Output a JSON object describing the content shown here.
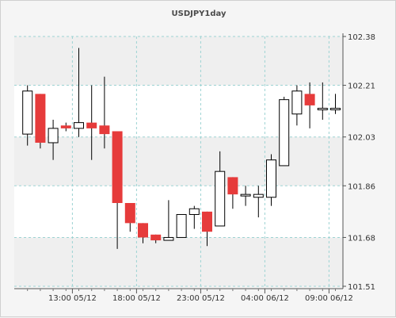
{
  "chart_data": {
    "type": "candlestick",
    "title": "USDJPY1day",
    "y_ticks": [
      "101.51",
      "101.68",
      "101.86",
      "102.03",
      "102.21",
      "102.38"
    ],
    "ylim": [
      101.51,
      102.38
    ],
    "x_tick_labels": [
      {
        "label": "13:00 05/12",
        "index": 3.5
      },
      {
        "label": "18:00 05/12",
        "index": 8.5
      },
      {
        "label": "23:00 05/12",
        "index": 13.5
      },
      {
        "label": "04:00 06/12",
        "index": 18.5
      },
      {
        "label": "09:00 06/12",
        "index": 23.5
      }
    ],
    "grid": true,
    "colors": {
      "up": "#ffffff",
      "down": "#e63b3b",
      "outline": "#000000",
      "grid": "#9dd3d3",
      "band": "#efefef"
    },
    "candles": [
      {
        "open": 102.04,
        "high": 102.21,
        "low": 102.0,
        "close": 102.19
      },
      {
        "open": 102.18,
        "high": 102.18,
        "low": 101.99,
        "close": 102.01
      },
      {
        "open": 102.01,
        "high": 102.09,
        "low": 101.95,
        "close": 102.06
      },
      {
        "open": 102.07,
        "high": 102.08,
        "low": 102.05,
        "close": 102.06
      },
      {
        "open": 102.06,
        "high": 102.34,
        "low": 102.03,
        "close": 102.08
      },
      {
        "open": 102.08,
        "high": 102.21,
        "low": 101.95,
        "close": 102.06
      },
      {
        "open": 102.07,
        "high": 102.24,
        "low": 101.99,
        "close": 102.04
      },
      {
        "open": 102.05,
        "high": 102.05,
        "low": 101.64,
        "close": 101.8
      },
      {
        "open": 101.8,
        "high": 101.8,
        "low": 101.7,
        "close": 101.73
      },
      {
        "open": 101.73,
        "high": 101.73,
        "low": 101.66,
        "close": 101.68
      },
      {
        "open": 101.69,
        "high": 101.69,
        "low": 101.66,
        "close": 101.67
      },
      {
        "open": 101.67,
        "high": 101.81,
        "low": 101.67,
        "close": 101.68
      },
      {
        "open": 101.68,
        "high": 101.76,
        "low": 101.68,
        "close": 101.76
      },
      {
        "open": 101.76,
        "high": 101.79,
        "low": 101.71,
        "close": 101.78
      },
      {
        "open": 101.77,
        "high": 101.77,
        "low": 101.65,
        "close": 101.7
      },
      {
        "open": 101.72,
        "high": 101.98,
        "low": 101.72,
        "close": 101.91
      },
      {
        "open": 101.89,
        "high": 101.89,
        "low": 101.78,
        "close": 101.83
      },
      {
        "open": 101.83,
        "high": 101.86,
        "low": 101.79,
        "close": 101.83
      },
      {
        "open": 101.82,
        "high": 101.86,
        "low": 101.75,
        "close": 101.83
      },
      {
        "open": 101.82,
        "high": 101.97,
        "low": 101.79,
        "close": 101.95
      },
      {
        "open": 101.93,
        "high": 102.17,
        "low": 101.93,
        "close": 102.16
      },
      {
        "open": 102.11,
        "high": 102.21,
        "low": 102.07,
        "close": 102.19
      },
      {
        "open": 102.18,
        "high": 102.22,
        "low": 102.06,
        "close": 102.14
      },
      {
        "open": 102.13,
        "high": 102.22,
        "low": 102.09,
        "close": 102.13
      },
      {
        "open": 102.13,
        "high": 102.18,
        "low": 102.11,
        "close": 102.13
      }
    ]
  }
}
